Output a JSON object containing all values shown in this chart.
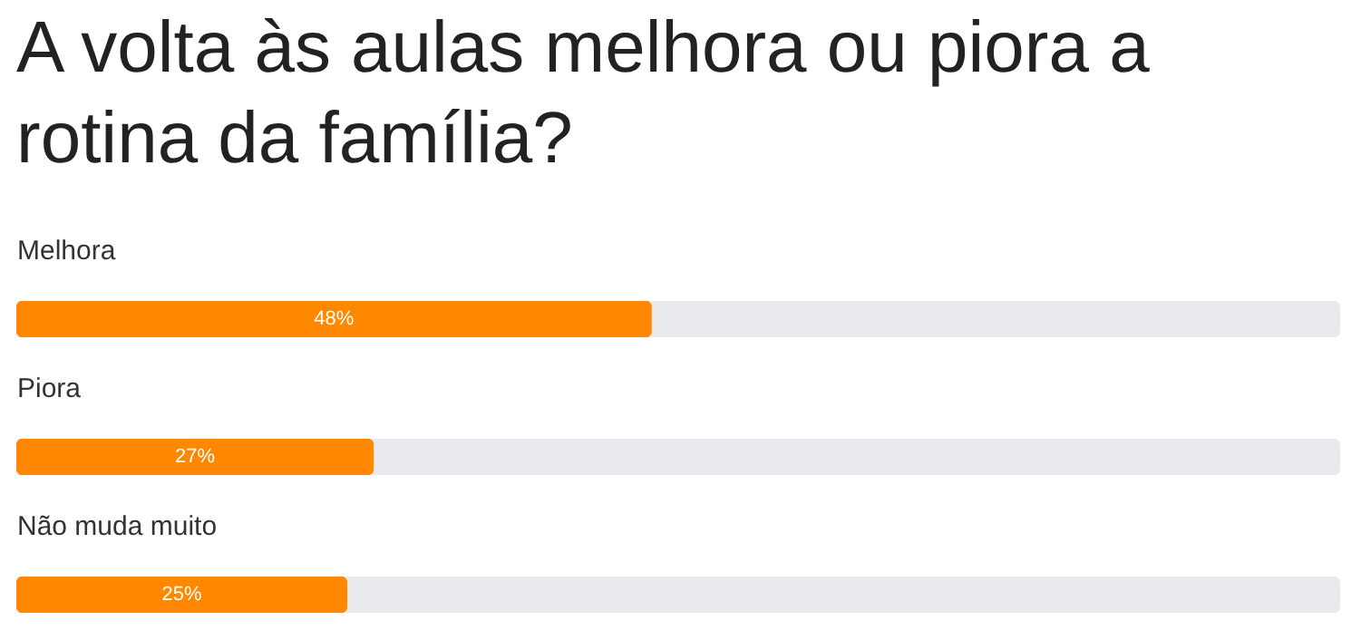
{
  "chart_data": {
    "type": "bar",
    "orientation": "horizontal",
    "title": "A volta às aulas melhora ou piora a rotina da família?",
    "categories": [
      "Melhora",
      "Piora",
      "Não muda muito"
    ],
    "values": [
      48,
      27,
      25
    ],
    "value_labels": [
      "48%",
      "27%",
      "25%"
    ],
    "color": "#ff8800",
    "xlim": [
      0,
      100
    ],
    "tick_labels": "y"
  }
}
